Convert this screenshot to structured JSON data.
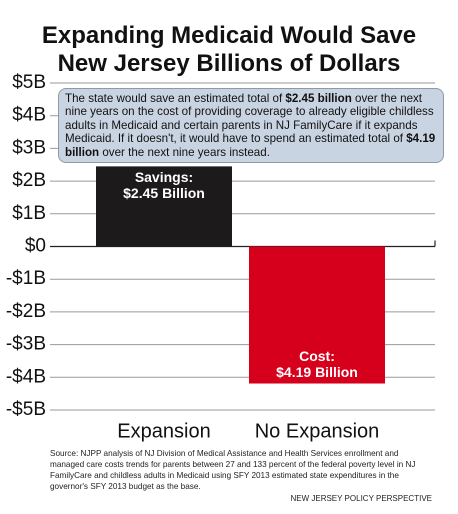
{
  "chart_data": {
    "type": "bar",
    "title": "Expanding Medicaid Would Save\nNew Jersey Billions of Dollars",
    "annotation": [
      "The state would save an estimated total of ",
      "$2.45 billion",
      " over the next nine years on the cost of providing coverage to already eligible childless adults in Medicaid and certain parents in NJ FamilyCare if it expands Medicaid. If it doesn't, it would have to spend an estimated total of ",
      "$4.19 billion",
      " over the next nine years instead."
    ],
    "categories": [
      "Expansion",
      "No Expansion"
    ],
    "values": [
      2.45,
      -4.19
    ],
    "value_labels": [
      "Savings:\n$2.45 Billion",
      "Cost:\n$4.19 Billion"
    ],
    "colors": [
      "#1c1a1a",
      "#d7001c"
    ],
    "ylim": [
      -5,
      5
    ],
    "yticks": [
      {
        "value": 5,
        "label": "$5B"
      },
      {
        "value": 4,
        "label": "$4B"
      },
      {
        "value": 3,
        "label": "$3B"
      },
      {
        "value": 2,
        "label": "$2B"
      },
      {
        "value": 1,
        "label": "$1B"
      },
      {
        "value": 0,
        "label": "$0"
      },
      {
        "value": -1,
        "label": "-$1B"
      },
      {
        "value": -2,
        "label": "-$2B"
      },
      {
        "value": -3,
        "label": "-$3B"
      },
      {
        "value": -4,
        "label": "-$4B"
      },
      {
        "value": -5,
        "label": "-$5B"
      }
    ],
    "grid": true,
    "source": "Source: NJPP analysis of NJ Division of Medical Assistance and Health Services enrollment and managed care costs trends for parents between 27 and 133 percent of the federal poverty level in NJ FamilyCare and childless adults in Medicaid using SFY 2013 estimated state expenditures in the governor's SFY 2013 budget as the base.",
    "credit": "NEW JERSEY POLICY PERSPECTIVE"
  }
}
